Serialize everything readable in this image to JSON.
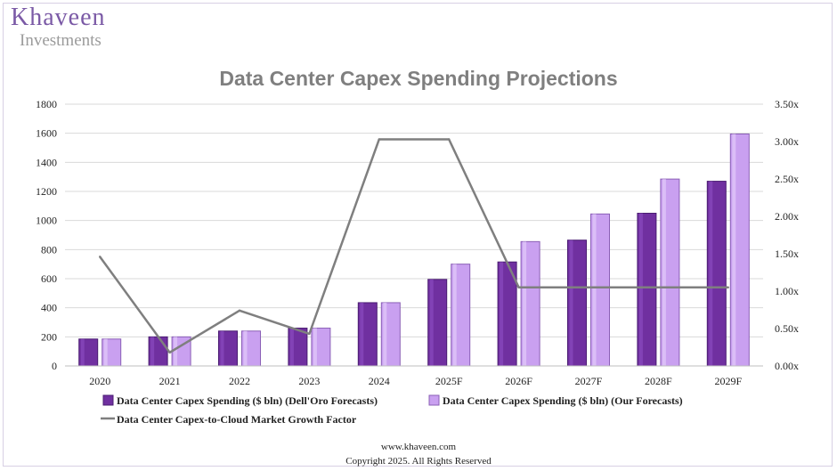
{
  "brand": {
    "name": "Khaveen",
    "sub": "Investments",
    "accent": "#7b5aa6"
  },
  "footer": {
    "website": "www.khaveen.com",
    "copyright": "Copyright 2025. All Rights Reserved"
  },
  "chart_data": {
    "type": "bar",
    "title": "Data Center Capex Spending Projections",
    "categories": [
      "2020",
      "2021",
      "2022",
      "2023",
      "2024",
      "2025F",
      "2026F",
      "2027F",
      "2028F",
      "2029F"
    ],
    "series": [
      {
        "name": "Data Center Capex Spending ($ bln) (Dell'Oro Forecasts)",
        "type": "bar",
        "axis": "left",
        "color": "#7030a0",
        "values": [
          185,
          200,
          240,
          260,
          435,
          595,
          715,
          865,
          1050,
          1270
        ]
      },
      {
        "name": "Data Center Capex Spending ($ bln) (Our Forecasts)",
        "type": "bar",
        "axis": "left",
        "color": "#c9a0f0",
        "values": [
          185,
          200,
          240,
          260,
          435,
          700,
          855,
          1045,
          1285,
          1595
        ]
      },
      {
        "name": "Data Center Capex-to-Cloud Market Growth Factor",
        "type": "line",
        "axis": "right",
        "color": "#7f7f7f",
        "values": [
          1.46,
          0.18,
          0.74,
          0.43,
          3.03,
          3.03,
          1.05,
          1.05,
          1.05,
          1.05
        ]
      }
    ],
    "ylim": [
      0,
      1800
    ],
    "yticks": [
      0,
      200,
      400,
      600,
      800,
      1000,
      1200,
      1400,
      1600,
      1800
    ],
    "y2lim": [
      0,
      3.5
    ],
    "y2ticks": [
      "0.00x",
      "0.50x",
      "1.00x",
      "1.50x",
      "2.00x",
      "2.50x",
      "3.00x",
      "3.50x"
    ],
    "grid": true,
    "legend_position": "bottom"
  }
}
